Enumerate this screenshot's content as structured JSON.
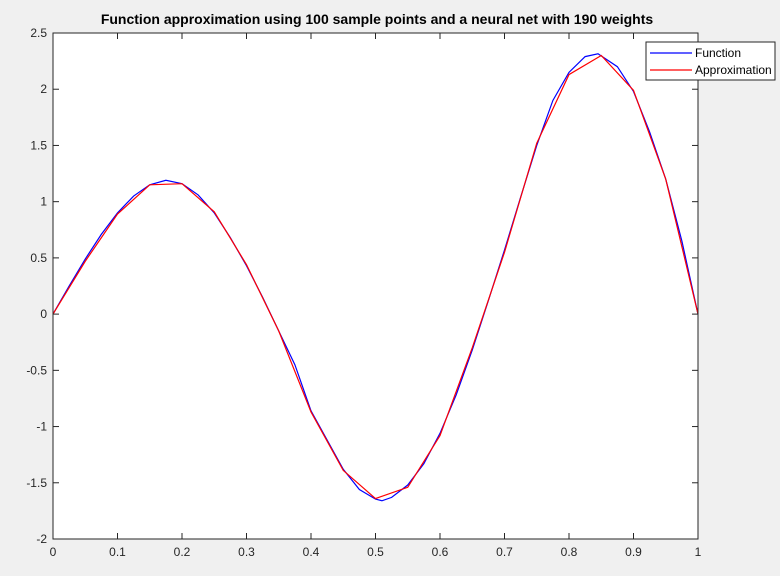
{
  "chart_data": {
    "type": "line",
    "title": "Function approximation using 100 sample points and a neural net with 190 weights",
    "xlabel": "",
    "ylabel": "",
    "xlim": [
      0,
      1
    ],
    "ylim": [
      -2,
      2.5
    ],
    "xticks": [
      0,
      0.1,
      0.2,
      0.3,
      0.4,
      0.5,
      0.6,
      0.7,
      0.8,
      0.9,
      1
    ],
    "xtick_labels": [
      "0",
      "0.1",
      "0.2",
      "0.3",
      "0.4",
      "0.5",
      "0.6",
      "0.7",
      "0.8",
      "0.9",
      "1"
    ],
    "yticks": [
      -2,
      -1.5,
      -1,
      -0.5,
      0,
      0.5,
      1,
      1.5,
      2,
      2.5
    ],
    "ytick_labels": [
      "-2",
      "-1.5",
      "-1",
      "-0.5",
      "0",
      "0.5",
      "1",
      "1.5",
      "2",
      "2.5"
    ],
    "grid": false,
    "legend_position": "top-right",
    "series": [
      {
        "name": "Function",
        "color": "#0000ff",
        "x": [
          0,
          0.025,
          0.05,
          0.075,
          0.1,
          0.125,
          0.15,
          0.175,
          0.2,
          0.225,
          0.25,
          0.275,
          0.3,
          0.325,
          0.35,
          0.375,
          0.4,
          0.425,
          0.45,
          0.475,
          0.5,
          0.51,
          0.525,
          0.55,
          0.575,
          0.6,
          0.625,
          0.65,
          0.675,
          0.7,
          0.725,
          0.75,
          0.775,
          0.8,
          0.825,
          0.845,
          0.875,
          0.9,
          0.925,
          0.95,
          0.975,
          1
        ],
        "y": [
          0,
          0.25,
          0.49,
          0.71,
          0.9,
          1.05,
          1.15,
          1.19,
          1.16,
          1.06,
          0.9,
          0.68,
          0.43,
          0.15,
          -0.15,
          -0.45,
          -0.86,
          -1.12,
          -1.38,
          -1.56,
          -1.645,
          -1.66,
          -1.63,
          -1.52,
          -1.33,
          -1.06,
          -0.72,
          -0.32,
          0.12,
          0.57,
          1.04,
          1.5,
          1.9,
          2.15,
          2.29,
          2.315,
          2.2,
          1.98,
          1.62,
          1.2,
          0.65,
          0
        ]
      },
      {
        "name": "Approximation",
        "color": "#ff0000",
        "x": [
          0,
          0.05,
          0.1,
          0.15,
          0.2,
          0.25,
          0.3,
          0.35,
          0.4,
          0.45,
          0.5,
          0.55,
          0.6,
          0.65,
          0.7,
          0.75,
          0.8,
          0.85,
          0.9,
          0.95,
          1
        ],
        "y": [
          0,
          0.47,
          0.89,
          1.15,
          1.16,
          0.91,
          0.44,
          -0.15,
          -0.87,
          -1.39,
          -1.64,
          -1.54,
          -1.08,
          -0.3,
          0.55,
          1.52,
          2.13,
          2.3,
          1.99,
          1.2,
          0
        ]
      }
    ]
  }
}
